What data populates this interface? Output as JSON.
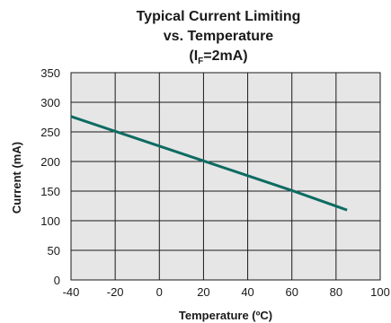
{
  "chart_data": {
    "type": "line",
    "title_lines": [
      "Typical Current Limiting",
      "vs. Temperature"
    ],
    "subtitle": {
      "prefix": "(I",
      "subscript": "F",
      "suffix": "=2mA)"
    },
    "xlabel": "Temperature (ºC)",
    "ylabel": "Current (mA)",
    "xlim": [
      -40,
      100
    ],
    "ylim": [
      0,
      350
    ],
    "x_ticks": [
      -40,
      -20,
      0,
      20,
      40,
      60,
      80,
      100
    ],
    "y_ticks": [
      0,
      50,
      100,
      150,
      200,
      250,
      300,
      350
    ],
    "grid": true,
    "series": [
      {
        "color": "#0e6b62",
        "x": [
          -40,
          -20,
          0,
          20,
          40,
          60,
          85
        ],
        "y": [
          276,
          251,
          226,
          201,
          176,
          151,
          118
        ]
      }
    ],
    "background_color": "#e6e6e6",
    "grid_color": "#1a1a1a"
  }
}
